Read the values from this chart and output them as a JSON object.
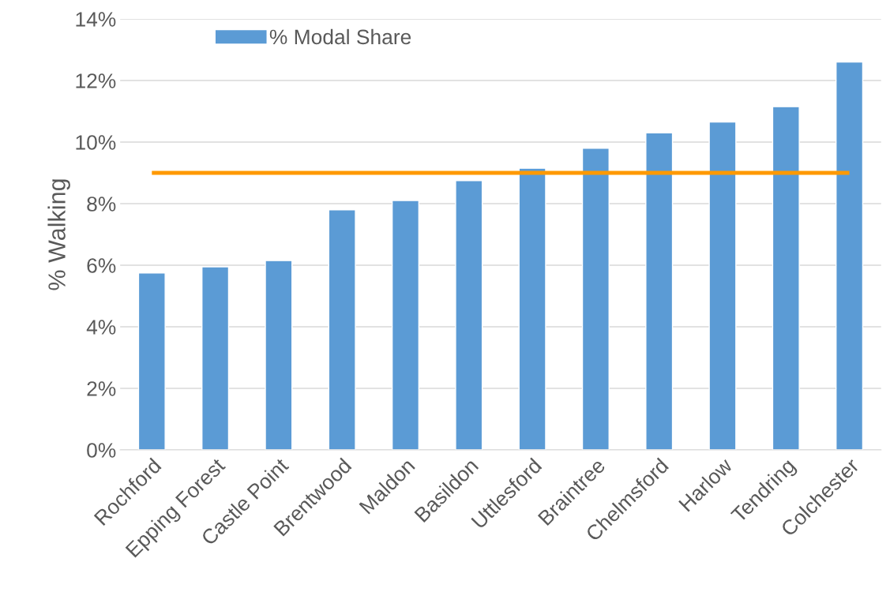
{
  "chart_data": {
    "type": "bar",
    "ylabel": "% Walking",
    "categories": [
      "Rochford",
      "Epping Forest",
      "Castle Point",
      "Brentwood",
      "Maldon",
      "Basildon",
      "Uttlesford",
      "Braintree",
      "Chelmsford",
      "Harlow",
      "Tendring",
      "Colchester"
    ],
    "series": [
      {
        "name": "% Modal Share",
        "color": "#5b9bd5",
        "values": [
          5.75,
          5.95,
          6.15,
          7.8,
          8.1,
          8.75,
          9.15,
          9.8,
          10.3,
          10.65,
          11.15,
          12.6
        ]
      }
    ],
    "ylim": [
      0,
      14
    ],
    "yticks": [
      {
        "value": 0,
        "label": "0%"
      },
      {
        "value": 2,
        "label": "2%"
      },
      {
        "value": 4,
        "label": "4%"
      },
      {
        "value": 6,
        "label": "6%"
      },
      {
        "value": 8,
        "label": "8%"
      },
      {
        "value": 10,
        "label": "10%"
      },
      {
        "value": 12,
        "label": "12%"
      },
      {
        "value": 14,
        "label": "14%"
      }
    ],
    "ref_lines": [
      {
        "axis": "y",
        "value": 9,
        "color": "#ff9900"
      }
    ],
    "grid": "y",
    "legend": "top left"
  }
}
